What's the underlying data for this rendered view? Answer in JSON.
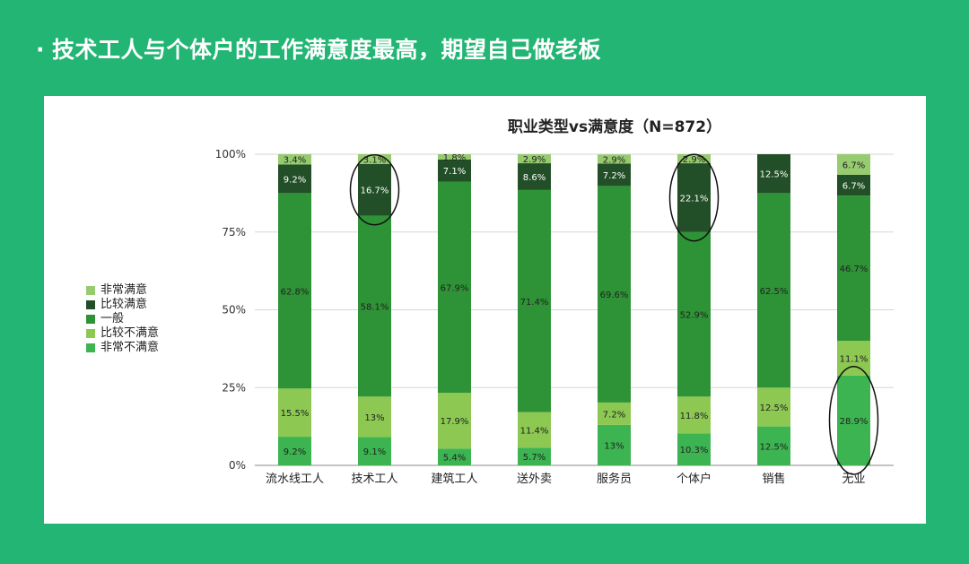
{
  "slide": {
    "bullet": "·",
    "title": "技术工人与个体户的工作满意度最高，期望自己做老板"
  },
  "colors": {
    "background": "#22b573",
    "非常满意": "#97cb70",
    "比较满意": "#224f27",
    "一般": "#2e9336",
    "比较不满意": "#8cc852",
    "非常不满意": "#3cb451"
  },
  "legend": [
    {
      "label": "非常满意",
      "color": "#97cb70"
    },
    {
      "label": "比较满意",
      "color": "#224f27"
    },
    {
      "label": "一般",
      "color": "#2e9336"
    },
    {
      "label": "比较不满意",
      "color": "#8cc852"
    },
    {
      "label": "非常不满意",
      "color": "#3cb451"
    }
  ],
  "chart_data": {
    "type": "bar",
    "stacked": true,
    "title": "职业类型vs满意度（N=872）",
    "xlabel": "",
    "ylabel": "",
    "ylim": [
      0,
      100
    ],
    "yticks": [
      "0%",
      "25%",
      "50%",
      "75%",
      "100%"
    ],
    "categories": [
      "流水线工人",
      "技术工人",
      "建筑工人",
      "送外卖",
      "服务员",
      "个体户",
      "销售",
      "无业"
    ],
    "series": [
      {
        "name": "非常不满意",
        "values": [
          9.2,
          9.1,
          5.4,
          5.7,
          13,
          10.3,
          12.5,
          28.9
        ],
        "labels": [
          "9.2%",
          "9.1%",
          "5.4%",
          "5.7%",
          "13%",
          "10.3%",
          "12.5%",
          "28.9%"
        ]
      },
      {
        "name": "比较不满意",
        "values": [
          15.5,
          13,
          17.9,
          11.4,
          7.2,
          11.8,
          12.5,
          11.1
        ],
        "labels": [
          "15.5%",
          "13%",
          "17.9%",
          "11.4%",
          "7.2%",
          "11.8%",
          "12.5%",
          "11.1%"
        ]
      },
      {
        "name": "一般",
        "values": [
          62.8,
          58.1,
          67.9,
          71.4,
          69.6,
          52.9,
          62.5,
          46.7
        ],
        "labels": [
          "62.8%",
          "58.1%",
          "67.9%",
          "71.4%",
          "69.6%",
          "52.9%",
          "62.5%",
          "46.7%"
        ]
      },
      {
        "name": "比较满意",
        "values": [
          9.2,
          16.7,
          7.1,
          8.6,
          7.2,
          22.1,
          12.5,
          6.7
        ],
        "labels": [
          "9.2%",
          "16.7%",
          "7.1%",
          "8.6%",
          "7.2%",
          "22.1%",
          "12.5%",
          "6.7%"
        ]
      },
      {
        "name": "非常满意",
        "values": [
          3.4,
          3.1,
          1.8,
          2.9,
          2.9,
          2.9,
          0,
          6.7
        ],
        "labels": [
          "3.4%",
          "3.1%",
          "1.8%",
          "2.9%",
          "2.9%",
          "2.9%",
          "",
          "6.7%"
        ]
      }
    ],
    "annotations": [
      {
        "type": "circle",
        "category": "技术工人",
        "series": "比较满意"
      },
      {
        "type": "circle",
        "category": "个体户",
        "series": "比较满意"
      },
      {
        "type": "circle",
        "category": "无业",
        "series": "非常不满意"
      }
    ]
  }
}
